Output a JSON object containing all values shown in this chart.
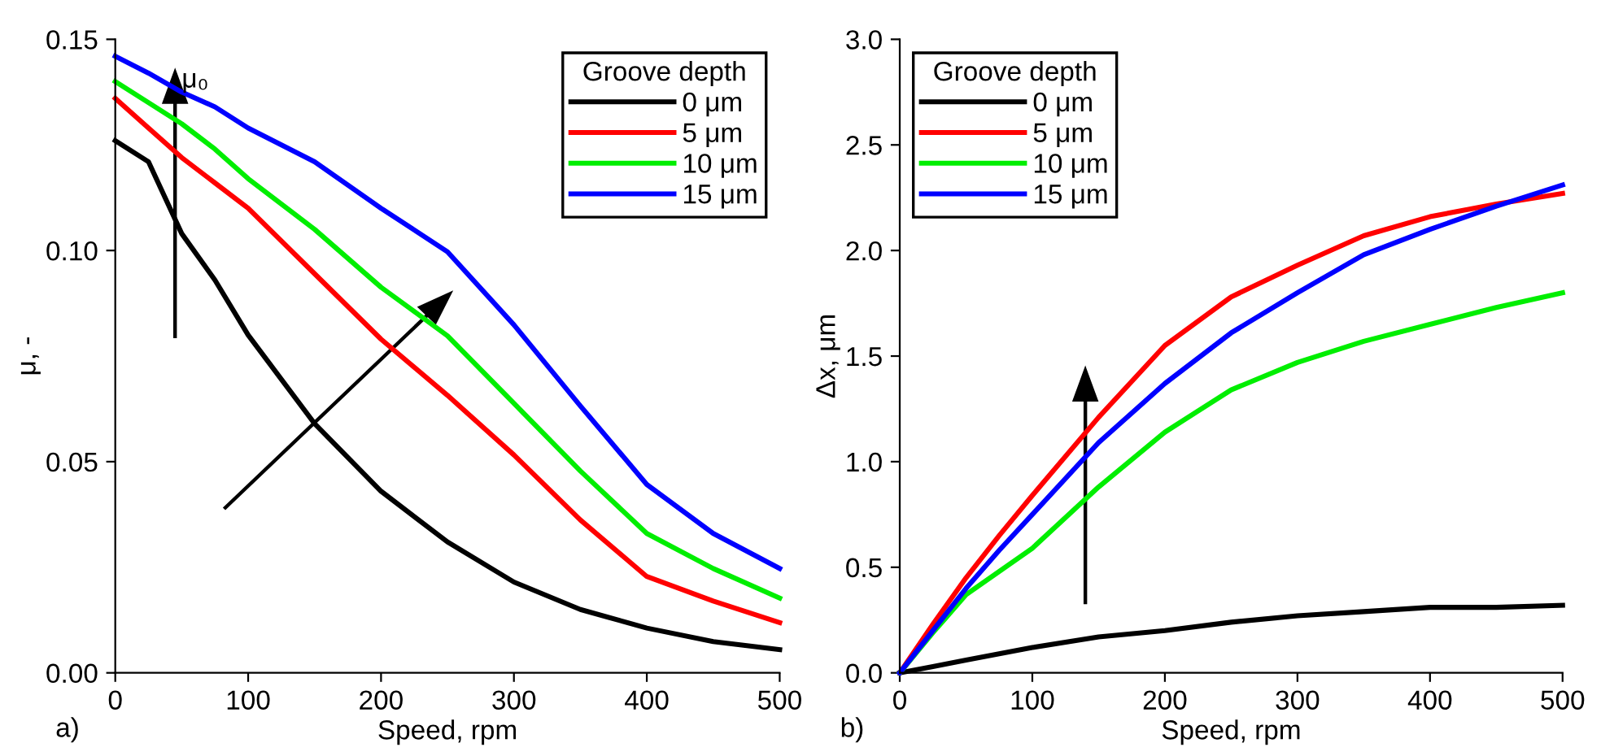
{
  "chart_data": [
    {
      "type": "line",
      "xlabel": "Speed, rpm",
      "ylabel": "μ, -",
      "legend_title": "Groove depth",
      "legend": "top right",
      "grid": false,
      "marker": "none",
      "line_style": "solid",
      "x": [
        0,
        25,
        50,
        75,
        100,
        150,
        200,
        250,
        300,
        350,
        400,
        450,
        500
      ],
      "xlim": [
        0,
        500
      ],
      "xticks": [
        0,
        100,
        200,
        300,
        400,
        500
      ],
      "ylim": [
        0,
        0.15
      ],
      "yticks": [
        {
          "value": 0,
          "label": "0.00"
        },
        {
          "value": 0.05,
          "label": "0.05"
        },
        {
          "value": 0.1,
          "label": "0.10"
        },
        {
          "value": 0.15,
          "label": "0.15"
        }
      ],
      "annotations": [
        "a)",
        "μ₀"
      ],
      "series": [
        {
          "name": "0 μm",
          "color": "#000000",
          "values": [
            0.126,
            0.121,
            0.104,
            0.093,
            0.08,
            0.059,
            0.043,
            0.031,
            0.0215,
            0.015,
            0.0106,
            0.0074,
            0.0055
          ]
        },
        {
          "name": "5 μm",
          "color": "#ff0000",
          "values": [
            0.136,
            0.129,
            0.122,
            0.116,
            0.11,
            0.0945,
            0.079,
            0.0657,
            0.0516,
            0.0362,
            0.0228,
            0.017,
            0.0119
          ]
        },
        {
          "name": "10 μm",
          "color": "#00ee00",
          "values": [
            0.14,
            0.135,
            0.13,
            0.124,
            0.117,
            0.105,
            0.0913,
            0.0798,
            0.0638,
            0.0478,
            0.033,
            0.0247,
            0.0177
          ]
        },
        {
          "name": "15 μm",
          "color": "#0000ff",
          "values": [
            0.146,
            0.142,
            0.1375,
            0.134,
            0.129,
            0.121,
            0.11,
            0.0997,
            0.0824,
            0.0632,
            0.0446,
            0.033,
            0.0247
          ]
        }
      ]
    },
    {
      "type": "line",
      "xlabel": "Speed, rpm",
      "ylabel": "Δx, μm",
      "legend_title": "Groove depth",
      "legend": "top left",
      "grid": false,
      "marker": "none",
      "line_style": "solid",
      "x": [
        0,
        25,
        50,
        75,
        100,
        150,
        200,
        250,
        300,
        350,
        400,
        450,
        500
      ],
      "xlim": [
        0,
        500
      ],
      "xticks": [
        0,
        100,
        200,
        300,
        400,
        500
      ],
      "ylim": [
        0,
        3
      ],
      "yticks": [
        {
          "value": 0,
          "label": "0.0"
        },
        0.5,
        {
          "value": 1,
          "label": "1.0"
        },
        1.5,
        {
          "value": 2,
          "label": "2.0"
        },
        2.5,
        {
          "value": 3,
          "label": "3.0"
        }
      ],
      "annotations": [
        "b)"
      ],
      "series": [
        {
          "name": "0 μm",
          "color": "#000000",
          "values": [
            0,
            0.03,
            0.06,
            0.09,
            0.12,
            0.17,
            0.2,
            0.24,
            0.27,
            0.29,
            0.31,
            0.31,
            0.32
          ]
        },
        {
          "name": "5 μm",
          "color": "#ff0000",
          "values": [
            0,
            0.23,
            0.45,
            0.65,
            0.84,
            1.21,
            1.55,
            1.78,
            1.93,
            2.07,
            2.16,
            2.22,
            2.27
          ]
        },
        {
          "name": "10 μm",
          "color": "#00ee00",
          "values": [
            0,
            0.19,
            0.37,
            0.48,
            0.59,
            0.88,
            1.14,
            1.34,
            1.47,
            1.57,
            1.65,
            1.73,
            1.8
          ]
        },
        {
          "name": "15 μm",
          "color": "#0000ff",
          "values": [
            0,
            0.2,
            0.4,
            0.58,
            0.75,
            1.09,
            1.37,
            1.61,
            1.8,
            1.98,
            2.1,
            2.21,
            2.31
          ]
        }
      ]
    }
  ]
}
